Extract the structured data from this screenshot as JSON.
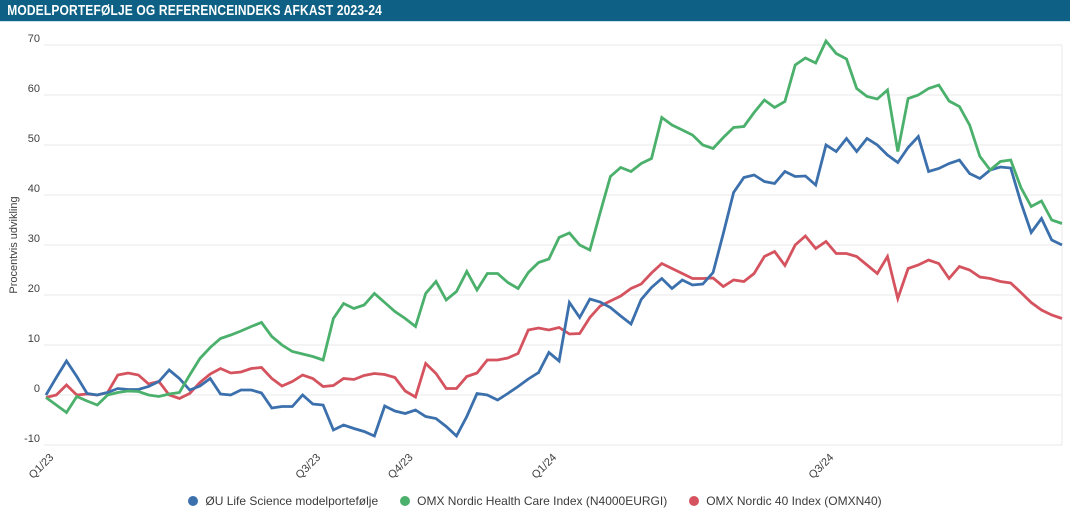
{
  "header": {
    "title": "MODELPORTEFØLJE OG REFERENCEINDEKS AFKAST 2023-24",
    "bg_color": "#0e6184",
    "text_color": "#ffffff"
  },
  "chart_data": {
    "type": "line",
    "title": "MODELPORTEFØLJE OG REFERENCEINDEKS AFKAST 2023-24",
    "xlabel": "",
    "ylabel": "Procentvis udvikling",
    "ylim": [
      -10,
      70
    ],
    "grid": true,
    "legend_position": "bottom",
    "gridline_color": "#e9e9e9",
    "y_ticks": [
      -10,
      0,
      10,
      20,
      30,
      40,
      50,
      60,
      70
    ],
    "x_tick_labels": [
      {
        "label": "Q1/23",
        "index": 1
      },
      {
        "label": "Q3/23",
        "index": 27
      },
      {
        "label": "Q4/23",
        "index": 36
      },
      {
        "label": "Q1/24",
        "index": 50
      },
      {
        "label": "Q3/24",
        "index": 77
      }
    ],
    "series": [
      {
        "name": "ØU Life Science modelportefølje",
        "key": "ou-life-science",
        "color": "#3b70ad",
        "values": [
          0,
          3.5,
          6.8,
          3.7,
          0.3,
          0,
          0.5,
          1.3,
          1.1,
          1.1,
          1.7,
          2.7,
          5,
          3.3,
          1,
          1.8,
          3.3,
          0.2,
          0,
          1,
          1,
          0.4,
          -2.6,
          -2.3,
          -2.3,
          0,
          -1.8,
          -2,
          -7,
          -6,
          -6.7,
          -7.3,
          -8.2,
          -2.2,
          -3.2,
          -3.7,
          -3,
          -4.3,
          -4.7,
          -6.3,
          -8.2,
          -4.3,
          0.3,
          0,
          -1,
          0.3,
          1.7,
          3.2,
          4.5,
          8.5,
          6.8,
          18.5,
          15.5,
          19.2,
          18.6,
          17.5,
          15.8,
          14.2,
          19.1,
          21.5,
          23.3,
          21.3,
          23,
          22,
          22.2,
          24.5,
          32.3,
          40.5,
          43.5,
          44,
          42.7,
          42.3,
          44.7,
          43.7,
          43.8,
          42,
          50,
          48.7,
          51.3,
          48.7,
          51.3,
          50,
          48,
          46.5,
          49.5,
          51.7,
          44.7,
          45.3,
          46.3,
          47,
          44.3,
          43.3,
          45,
          45.6,
          45.4,
          38.5,
          32.5,
          35.3,
          31,
          30
        ]
      },
      {
        "name": "OMX Nordic Health Care Index (N4000EURGI)",
        "key": "omx-health-care",
        "color": "#4ab06b",
        "values": [
          -0.5,
          -2,
          -3.5,
          -0.3,
          -1.2,
          -2,
          0,
          0.5,
          0.8,
          0.7,
          0,
          -0.3,
          0.2,
          0.5,
          4,
          7.3,
          9.5,
          11.3,
          12,
          12.8,
          13.7,
          14.5,
          11.7,
          10,
          8.7,
          8.2,
          7.7,
          7,
          15.3,
          18.3,
          17.3,
          18,
          20.3,
          18.5,
          16.7,
          15.3,
          13.7,
          20.3,
          22.7,
          19,
          20.7,
          24.7,
          21,
          24.3,
          24.3,
          22.5,
          21.3,
          24.5,
          26.5,
          27.2,
          31.5,
          32.4,
          30,
          29,
          36.5,
          43.7,
          45.5,
          44.7,
          46.3,
          47.3,
          55.5,
          54,
          53,
          52,
          50,
          49.3,
          51.5,
          53.5,
          53.7,
          56.5,
          59,
          57.5,
          58.7,
          66,
          67.4,
          66.4,
          70.8,
          68.3,
          67.2,
          61.3,
          59.7,
          59.2,
          61,
          48.7,
          59.3,
          60,
          61.3,
          62,
          58.8,
          57.7,
          54,
          47.7,
          45,
          46.7,
          47,
          41.5,
          37.7,
          38.8,
          35,
          34.3
        ]
      },
      {
        "name": "OMX Nordic 40 Index (OMXN40)",
        "key": "omx-nordic-40",
        "color": "#d5535f",
        "values": [
          -0.5,
          0,
          2,
          0,
          0.2,
          0,
          0.5,
          4,
          4.4,
          4,
          2.2,
          2.7,
          0,
          -0.7,
          0.3,
          2.5,
          4.2,
          5.3,
          4.4,
          4.6,
          5.3,
          5.5,
          3.3,
          1.8,
          2.7,
          4,
          3.3,
          1.7,
          1.9,
          3.3,
          3.1,
          3.9,
          4.3,
          4.1,
          3.5,
          0.8,
          -0.4,
          6.3,
          4.3,
          1.3,
          1.3,
          3.7,
          4.4,
          7,
          7,
          7.4,
          8.3,
          13,
          13.4,
          13,
          13.5,
          12.2,
          12.3,
          15.5,
          17.8,
          18.8,
          19.8,
          21.3,
          22.2,
          24.4,
          26.3,
          25.3,
          24.3,
          23.3,
          23.3,
          23.4,
          21.7,
          23,
          22.7,
          24.3,
          27.7,
          28.7,
          25.9,
          30,
          31.8,
          29.3,
          30.7,
          28.3,
          28.3,
          27.7,
          26,
          24.3,
          27.7,
          19.3,
          25.3,
          26,
          27,
          26.3,
          23.3,
          25.7,
          25,
          23.6,
          23.3,
          22.7,
          22.4,
          20.5,
          18.5,
          17,
          16,
          15.3
        ]
      }
    ]
  }
}
